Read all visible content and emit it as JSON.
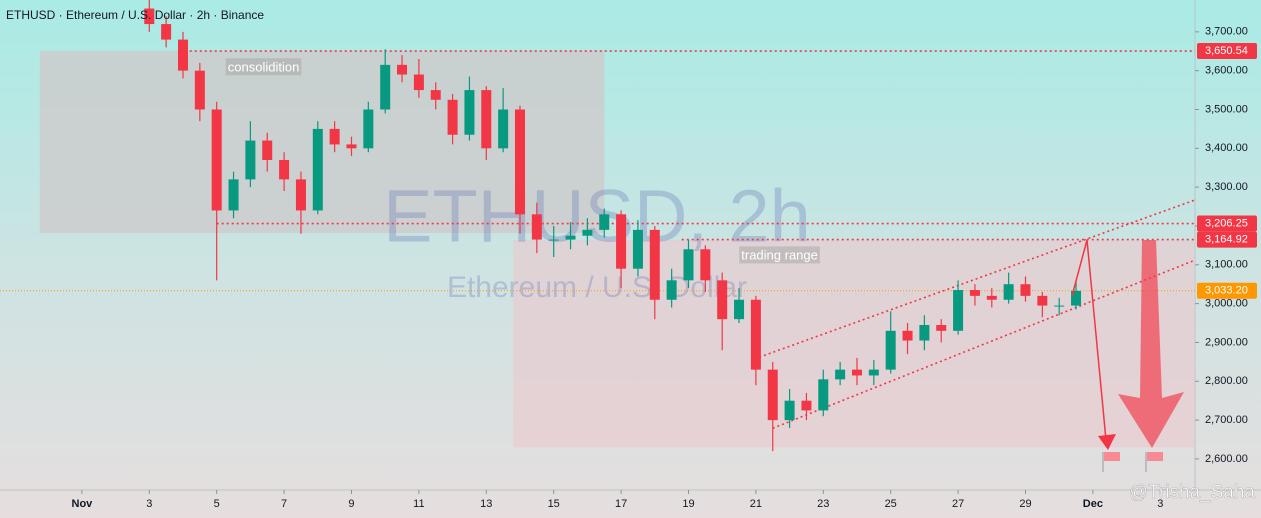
{
  "chart_data": {
    "type": "candlestick",
    "title": "ETHUSD · Ethereum / U.S. Dollar · 2h · Binance",
    "watermark": "ETHUSD, 2h",
    "watermark_subtitle": "Ethereum / U.S. Dollar",
    "author": "@Trisha_Saha",
    "up_color": "#089981",
    "down_color": "#f23645",
    "x": [
      3,
      3.5,
      4,
      4.5,
      5,
      5.5,
      6,
      6.5,
      7,
      7.5,
      8,
      8.5,
      9,
      9.5,
      10,
      10.5,
      11,
      11.5,
      12,
      12.5,
      13,
      13.5,
      14,
      14.5,
      15,
      15.5,
      16,
      16.5,
      17,
      17.5,
      18,
      18.5,
      19,
      19.5,
      20,
      20.5,
      21,
      21.5,
      22,
      22.5,
      23,
      23.5,
      24,
      24.5,
      25,
      25.5,
      26,
      26.5,
      27,
      27.5,
      28,
      28.5,
      29,
      29.5,
      30,
      30.5
    ],
    "open": [
      3760,
      3720,
      3680,
      3600,
      3500,
      3240,
      3320,
      3420,
      3370,
      3320,
      3240,
      3450,
      3410,
      3400,
      3500,
      3615,
      3590,
      3550,
      3525,
      3435,
      3550,
      3400,
      3500,
      3230,
      3165,
      3165,
      3175,
      3190,
      3230,
      3090,
      3190,
      3010,
      3060,
      3140,
      3060,
      2960,
      3010,
      2830,
      2700,
      2750,
      2725,
      2805,
      2830,
      2815,
      2830,
      2930,
      2905,
      2945,
      2930,
      3035,
      3020,
      3010,
      3050,
      3020,
      2995,
      2995
    ],
    "high": [
      3790,
      3740,
      3700,
      3620,
      3520,
      3340,
      3470,
      3440,
      3390,
      3340,
      3470,
      3470,
      3430,
      3520,
      3655,
      3640,
      3630,
      3570,
      3540,
      3585,
      3560,
      3555,
      3510,
      3260,
      3200,
      3210,
      3220,
      3245,
      3240,
      3215,
      3200,
      3090,
      3165,
      3150,
      3080,
      3040,
      3020,
      2850,
      2780,
      2770,
      2830,
      2850,
      2860,
      2855,
      2980,
      2950,
      2970,
      2960,
      3060,
      3050,
      3040,
      3080,
      3070,
      3030,
      3015,
      3060
    ],
    "low": [
      3700,
      3660,
      3580,
      3470,
      3060,
      3220,
      3300,
      3340,
      3290,
      3180,
      3230,
      3390,
      3380,
      3390,
      3490,
      3570,
      3530,
      3500,
      3410,
      3420,
      3370,
      3390,
      3180,
      3130,
      3120,
      3140,
      3150,
      3170,
      3040,
      3070,
      2960,
      2990,
      3040,
      3030,
      2880,
      2950,
      2790,
      2620,
      2680,
      2700,
      2710,
      2790,
      2790,
      2790,
      2820,
      2870,
      2880,
      2900,
      2920,
      2995,
      2990,
      3000,
      3005,
      2965,
      2970,
      2985
    ],
    "close": [
      3720,
      3680,
      3600,
      3500,
      3240,
      3320,
      3420,
      3370,
      3320,
      3240,
      3450,
      3410,
      3400,
      3500,
      3615,
      3590,
      3550,
      3525,
      3435,
      3550,
      3400,
      3500,
      3230,
      3165,
      3165,
      3175,
      3190,
      3230,
      3090,
      3190,
      3010,
      3060,
      3140,
      3060,
      2960,
      3010,
      2830,
      2700,
      2750,
      2725,
      2805,
      2830,
      2815,
      2830,
      2930,
      2905,
      2945,
      2930,
      3035,
      3020,
      3010,
      3050,
      3020,
      2995,
      2995,
      3033
    ],
    "xlim": [
      -1.43,
      34.03
    ],
    "ylim": [
      2520,
      3782
    ],
    "xticks": [
      {
        "value": 1,
        "label": "Nov"
      },
      3,
      5,
      7,
      9,
      11,
      13,
      15,
      17,
      19,
      21,
      23,
      25,
      27,
      29,
      {
        "value": 31,
        "label": "Dec"
      },
      {
        "value": 33,
        "label": "3"
      }
    ],
    "yticks": [
      {
        "value": 2600,
        "label": "2,600.00"
      },
      {
        "value": 2700,
        "label": "2,700.00"
      },
      {
        "value": 2800,
        "label": "2,800.00"
      },
      {
        "value": 2900,
        "label": "2,900.00"
      },
      {
        "value": 3000,
        "label": "3,000.00"
      },
      {
        "value": 3100,
        "label": "3,100.00"
      },
      {
        "value": 3200,
        "label": "3,200.00"
      },
      {
        "value": 3300,
        "label": "3,300.00"
      },
      {
        "value": 3400,
        "label": "3,400.00"
      },
      {
        "value": 3500,
        "label": "3,500.00"
      },
      {
        "value": 3600,
        "label": "3,600.00"
      },
      {
        "value": 3700,
        "label": "3,700.00"
      }
    ],
    "levels": [
      {
        "value": 3650.54,
        "label": "3,650.54",
        "color": "#f23645",
        "from": 4.2
      },
      {
        "value": 3206.25,
        "label": "3,206.25",
        "color": "#f23645",
        "from": 5
      },
      {
        "value": 3164.92,
        "label": "3,164.92",
        "color": "#f23645",
        "from": 18.8
      },
      {
        "value": 3033.2,
        "label": "3,033.20",
        "color": "#ff9800"
      }
    ],
    "zones": [
      {
        "label": "consolidition",
        "x": [
          -0.25,
          16.5
        ],
        "y": [
          3182,
          3651
        ],
        "color": "rgba(205,205,205,0.85)"
      },
      {
        "label": "trading range",
        "x": [
          13.8,
          34.03
        ],
        "y": [
          2630,
          3164
        ],
        "color": "rgba(235,200,205,0.6)"
      }
    ],
    "trendlines": [
      {
        "x": [
          21.1,
          34.03
        ],
        "y": [
          2862,
          3267
        ],
        "color": "#f23645"
      },
      {
        "x": [
          21.5,
          34.03
        ],
        "y": [
          2679,
          3112
        ],
        "color": "#f23645"
      }
    ]
  }
}
